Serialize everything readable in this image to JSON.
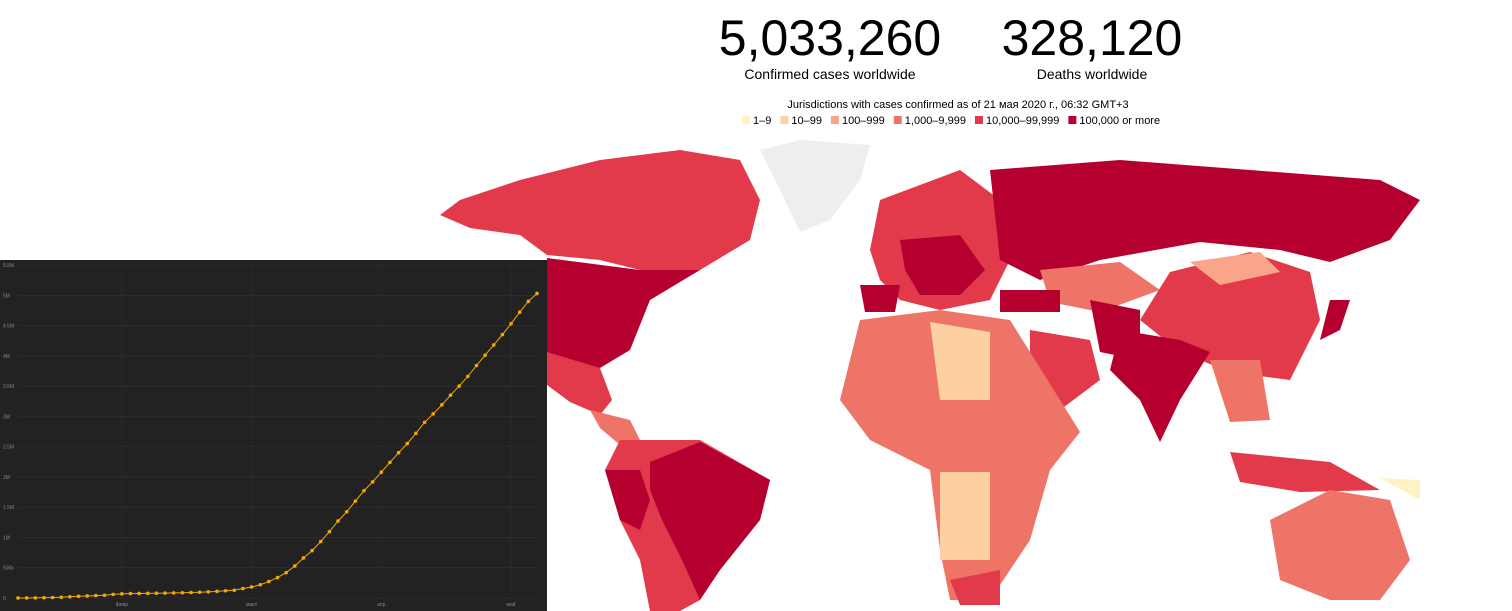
{
  "header": {
    "stats": [
      {
        "value": "5,033,260",
        "label": "Confirmed cases worldwide"
      },
      {
        "value": "328,120",
        "label": "Deaths worldwide"
      }
    ],
    "note": "Jurisdictions with cases confirmed as of 21 мая 2020 г., 06:32 GMT+3",
    "legend": [
      {
        "label": "1–9",
        "color": "#fff3c4"
      },
      {
        "label": "10–99",
        "color": "#fdd0a2"
      },
      {
        "label": "100–999",
        "color": "#f9a58a"
      },
      {
        "label": "1,000–9,999",
        "color": "#ef7468"
      },
      {
        "label": "10,000–99,999",
        "color": "#e23a4a"
      },
      {
        "label": "100,000 or more",
        "color": "#b5002f"
      }
    ]
  },
  "chart_data": {
    "type": "line",
    "color": "#f5a800",
    "markers": true,
    "grid": true,
    "categories": [
      null,
      null,
      null,
      null,
      null,
      null,
      null,
      null,
      null,
      null,
      null,
      null,
      "февр",
      null,
      null,
      null,
      null,
      null,
      null,
      null,
      null,
      null,
      null,
      null,
      null,
      null,
      null,
      "март",
      null,
      null,
      null,
      null,
      null,
      null,
      null,
      null,
      null,
      null,
      null,
      null,
      null,
      null,
      "апр",
      null,
      null,
      null,
      null,
      null,
      null,
      null,
      null,
      null,
      null,
      null,
      null,
      null,
      null,
      "май",
      null,
      null,
      null
    ],
    "values": [
      600,
      900,
      2100,
      5600,
      8200,
      12000,
      20000,
      28000,
      34000,
      40000,
      45000,
      60000,
      69000,
      73000,
      75000,
      77000,
      79000,
      81000,
      84000,
      86000,
      90000,
      95000,
      102000,
      110000,
      119000,
      128000,
      157000,
      182000,
      219000,
      272000,
      337000,
      418000,
      529000,
      661000,
      783000,
      933000,
      1096000,
      1272000,
      1424000,
      1600000,
      1772000,
      1918000,
      2078000,
      2240000,
      2400000,
      2550000,
      2720000,
      2900000,
      3040000,
      3190000,
      3350000,
      3500000,
      3660000,
      3840000,
      4010000,
      4180000,
      4350000,
      4530000,
      4720000,
      4900000,
      5030000
    ],
    "ylim": [
      0,
      5500000
    ],
    "yticks": [
      0,
      {
        "value": 500000,
        "label": "500k"
      },
      {
        "value": 1000000,
        "label": "1M"
      },
      {
        "value": 1500000,
        "label": "1.5M"
      },
      {
        "value": 2000000,
        "label": "2M"
      },
      {
        "value": 2500000,
        "label": "2.5M"
      },
      {
        "value": 3000000,
        "label": "3M"
      },
      {
        "value": 3500000,
        "label": "3.5M"
      },
      {
        "value": 4000000,
        "label": "4M"
      },
      {
        "value": 4500000,
        "label": "4.5M"
      },
      {
        "value": 5000000,
        "label": "5M"
      },
      {
        "value": 5500000,
        "label": "5.5M"
      }
    ]
  }
}
